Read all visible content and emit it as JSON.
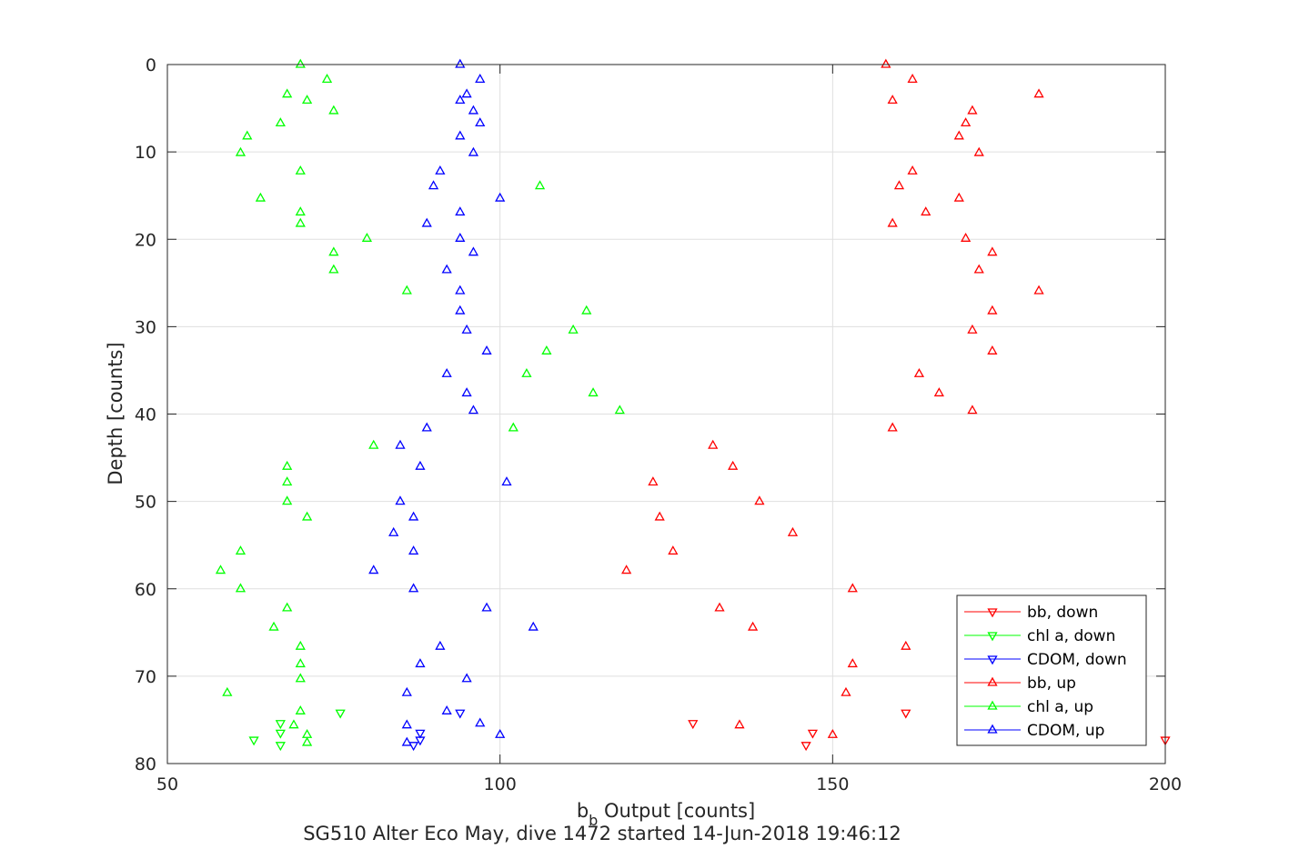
{
  "chart_data": {
    "type": "scatter",
    "xlabel": {
      "main": "b",
      "sub": "b",
      "rest": " Output [counts]"
    },
    "ylabel": "Depth [counts]",
    "subtitle": "SG510 Alter Eco May, dive 1472 started 14-Jun-2018 19:46:12",
    "xlim": [
      50,
      200
    ],
    "ylim": [
      0,
      80
    ],
    "y_reversed": true,
    "xticks": [
      "50",
      "100",
      "150",
      "200"
    ],
    "yticks": [
      "0",
      "10",
      "20",
      "30",
      "40",
      "50",
      "60",
      "70",
      "80"
    ],
    "grid": true,
    "legend_position": "bottom-right",
    "series": [
      {
        "name": "bb, down",
        "color": "#ff0000",
        "marker": "triangle-down",
        "points": [
          [
            161,
            74.2
          ],
          [
            129,
            75.4
          ],
          [
            147,
            76.5
          ],
          [
            146,
            77.9
          ],
          [
            200,
            77.3
          ]
        ]
      },
      {
        "name": "chl a, down",
        "color": "#00ff00",
        "marker": "triangle-down",
        "points": [
          [
            76,
            74.2
          ],
          [
            67,
            75.4
          ],
          [
            67,
            76.5
          ],
          [
            63,
            77.3
          ],
          [
            67,
            77.9
          ]
        ]
      },
      {
        "name": "CDOM, down",
        "color": "#0000ff",
        "marker": "triangle-down",
        "points": [
          [
            94,
            74.2
          ],
          [
            88,
            76.5
          ],
          [
            88,
            77.3
          ],
          [
            87,
            77.9
          ]
        ]
      },
      {
        "name": "bb, up",
        "color": "#ff0000",
        "marker": "triangle-up",
        "points": [
          [
            158,
            0
          ],
          [
            162,
            1.7
          ],
          [
            181,
            3.4
          ],
          [
            159,
            4.1
          ],
          [
            171,
            5.3
          ],
          [
            170,
            6.7
          ],
          [
            169,
            8.2
          ],
          [
            172,
            10.1
          ],
          [
            162,
            12.2
          ],
          [
            160,
            13.9
          ],
          [
            169,
            15.3
          ],
          [
            164,
            16.9
          ],
          [
            159,
            18.2
          ],
          [
            170,
            19.9
          ],
          [
            174,
            21.5
          ],
          [
            172,
            23.5
          ],
          [
            181,
            25.9
          ],
          [
            174,
            28.2
          ],
          [
            171,
            30.4
          ],
          [
            174,
            32.8
          ],
          [
            163,
            35.4
          ],
          [
            166,
            37.6
          ],
          [
            171,
            39.6
          ],
          [
            159,
            41.6
          ],
          [
            132,
            43.6
          ],
          [
            135,
            46.0
          ],
          [
            123,
            47.8
          ],
          [
            139,
            50.0
          ],
          [
            124,
            51.8
          ],
          [
            144,
            53.6
          ],
          [
            126,
            55.7
          ],
          [
            119,
            57.9
          ],
          [
            153,
            60.0
          ],
          [
            133,
            62.2
          ],
          [
            138,
            64.4
          ],
          [
            161,
            66.6
          ],
          [
            153,
            68.6
          ],
          [
            152,
            71.9
          ],
          [
            136,
            75.6
          ],
          [
            150,
            76.7
          ]
        ]
      },
      {
        "name": "chl a, up",
        "color": "#00ff00",
        "marker": "triangle-up",
        "points": [
          [
            70,
            0
          ],
          [
            74,
            1.7
          ],
          [
            68,
            3.4
          ],
          [
            71,
            4.1
          ],
          [
            75,
            5.3
          ],
          [
            67,
            6.7
          ],
          [
            62,
            8.2
          ],
          [
            61,
            10.1
          ],
          [
            70,
            12.2
          ],
          [
            106,
            13.9
          ],
          [
            64,
            15.3
          ],
          [
            70,
            16.9
          ],
          [
            70,
            18.2
          ],
          [
            80,
            19.9
          ],
          [
            75,
            21.5
          ],
          [
            75,
            23.5
          ],
          [
            86,
            25.9
          ],
          [
            113,
            28.2
          ],
          [
            111,
            30.4
          ],
          [
            107,
            32.8
          ],
          [
            104,
            35.4
          ],
          [
            114,
            37.6
          ],
          [
            118,
            39.6
          ],
          [
            102,
            41.6
          ],
          [
            81,
            43.6
          ],
          [
            68,
            46.0
          ],
          [
            68,
            47.8
          ],
          [
            68,
            50.0
          ],
          [
            71,
            51.8
          ],
          [
            61,
            55.7
          ],
          [
            58,
            57.9
          ],
          [
            61,
            60.0
          ],
          [
            68,
            62.2
          ],
          [
            66,
            64.4
          ],
          [
            70,
            66.6
          ],
          [
            70,
            68.6
          ],
          [
            70,
            70.3
          ],
          [
            59,
            71.9
          ],
          [
            70,
            74.0
          ],
          [
            69,
            75.6
          ],
          [
            71,
            76.7
          ],
          [
            71,
            77.6
          ]
        ]
      },
      {
        "name": "CDOM, up",
        "color": "#0000ff",
        "marker": "triangle-up",
        "points": [
          [
            94,
            0
          ],
          [
            97,
            1.7
          ],
          [
            95,
            3.4
          ],
          [
            94,
            4.1
          ],
          [
            96,
            5.3
          ],
          [
            97,
            6.7
          ],
          [
            94,
            8.2
          ],
          [
            96,
            10.1
          ],
          [
            91,
            12.2
          ],
          [
            90,
            13.9
          ],
          [
            100,
            15.3
          ],
          [
            94,
            16.9
          ],
          [
            89,
            18.2
          ],
          [
            94,
            19.9
          ],
          [
            96,
            21.5
          ],
          [
            92,
            23.5
          ],
          [
            94,
            25.9
          ],
          [
            94,
            28.2
          ],
          [
            95,
            30.4
          ],
          [
            98,
            32.8
          ],
          [
            92,
            35.4
          ],
          [
            95,
            37.6
          ],
          [
            96,
            39.6
          ],
          [
            89,
            41.6
          ],
          [
            85,
            43.6
          ],
          [
            88,
            46.0
          ],
          [
            101,
            47.8
          ],
          [
            85,
            50.0
          ],
          [
            87,
            51.8
          ],
          [
            84,
            53.6
          ],
          [
            87,
            55.7
          ],
          [
            81,
            57.9
          ],
          [
            87,
            60.0
          ],
          [
            98,
            62.2
          ],
          [
            105,
            64.4
          ],
          [
            91,
            66.6
          ],
          [
            88,
            68.6
          ],
          [
            95,
            70.3
          ],
          [
            86,
            71.9
          ],
          [
            92,
            74.0
          ],
          [
            97,
            75.4
          ],
          [
            86,
            75.6
          ],
          [
            100,
            76.7
          ],
          [
            86,
            77.6
          ]
        ]
      }
    ]
  }
}
